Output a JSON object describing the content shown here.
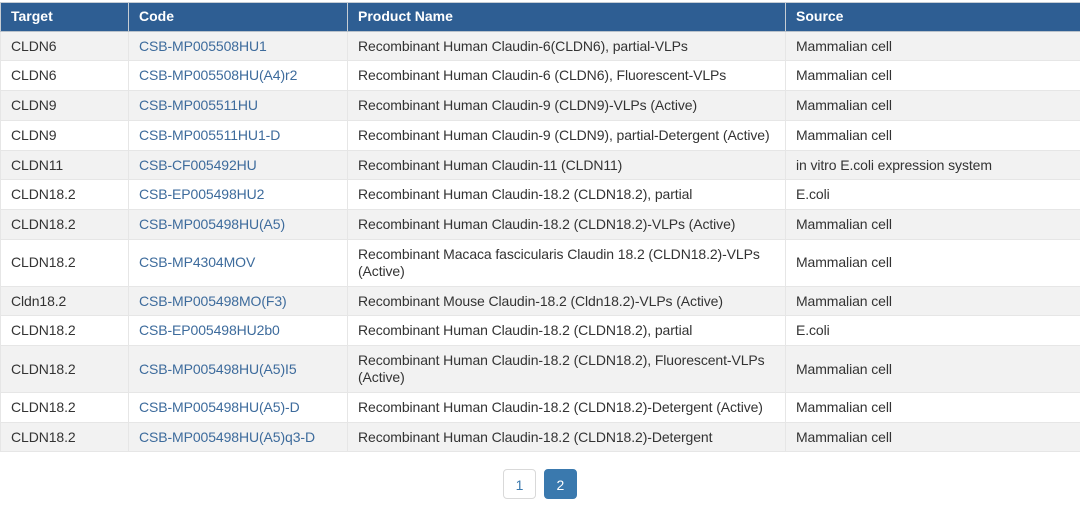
{
  "colors": {
    "header_bg": "#2e5e93",
    "link": "#3d6b9c",
    "active_page_bg": "#3a79ae",
    "row_stripe": "#f2f2f2",
    "cell_border": "#e6e6e6",
    "text": "#333333"
  },
  "table": {
    "columns": [
      "Target",
      "Code",
      "Product Name",
      "Source"
    ],
    "rows": [
      {
        "target": "CLDN6",
        "code": "CSB-MP005508HU1",
        "product": "Recombinant Human Claudin-6(CLDN6), partial-VLPs",
        "source": "Mammalian cell"
      },
      {
        "target": "CLDN6",
        "code": "CSB-MP005508HU(A4)r2",
        "product": "Recombinant Human Claudin-6 (CLDN6), Fluorescent-VLPs",
        "source": "Mammalian cell"
      },
      {
        "target": "CLDN9",
        "code": "CSB-MP005511HU",
        "product": "Recombinant Human Claudin-9 (CLDN9)-VLPs (Active)",
        "source": "Mammalian cell"
      },
      {
        "target": "CLDN9",
        "code": "CSB-MP005511HU1-D",
        "product": "Recombinant Human Claudin-9 (CLDN9), partial-Detergent (Active)",
        "source": "Mammalian cell"
      },
      {
        "target": "CLDN11",
        "code": "CSB-CF005492HU",
        "product": "Recombinant Human Claudin-11 (CLDN11)",
        "source": "in vitro E.coli expression system"
      },
      {
        "target": "CLDN18.2",
        "code": "CSB-EP005498HU2",
        "product": "Recombinant Human Claudin-18.2 (CLDN18.2), partial",
        "source": "E.coli"
      },
      {
        "target": "CLDN18.2",
        "code": "CSB-MP005498HU(A5)",
        "product": "Recombinant Human Claudin-18.2 (CLDN18.2)-VLPs (Active)",
        "source": "Mammalian cell"
      },
      {
        "target": "CLDN18.2",
        "code": "CSB-MP4304MOV",
        "product": "Recombinant Macaca fascicularis Claudin 18.2 (CLDN18.2)-VLPs (Active)",
        "source": "Mammalian cell"
      },
      {
        "target": "Cldn18.2",
        "code": "CSB-MP005498MO(F3)",
        "product": "Recombinant Mouse Claudin-18.2 (Cldn18.2)-VLPs (Active)",
        "source": "Mammalian cell"
      },
      {
        "target": "CLDN18.2",
        "code": "CSB-EP005498HU2b0",
        "product": "Recombinant Human Claudin-18.2 (CLDN18.2), partial",
        "source": "E.coli"
      },
      {
        "target": "CLDN18.2",
        "code": "CSB-MP005498HU(A5)I5",
        "product": "Recombinant Human Claudin-18.2 (CLDN18.2), Fluorescent-VLPs (Active)",
        "source": "Mammalian cell"
      },
      {
        "target": "CLDN18.2",
        "code": "CSB-MP005498HU(A5)-D",
        "product": "Recombinant Human Claudin-18.2 (CLDN18.2)-Detergent (Active)",
        "source": "Mammalian cell"
      },
      {
        "target": "CLDN18.2",
        "code": "CSB-MP005498HU(A5)q3-D",
        "product": "Recombinant Human Claudin-18.2 (CLDN18.2)-Detergent",
        "source": "Mammalian cell"
      }
    ]
  },
  "pagination": {
    "pages": [
      {
        "label": "1",
        "active": false
      },
      {
        "label": "2",
        "active": true
      }
    ]
  }
}
